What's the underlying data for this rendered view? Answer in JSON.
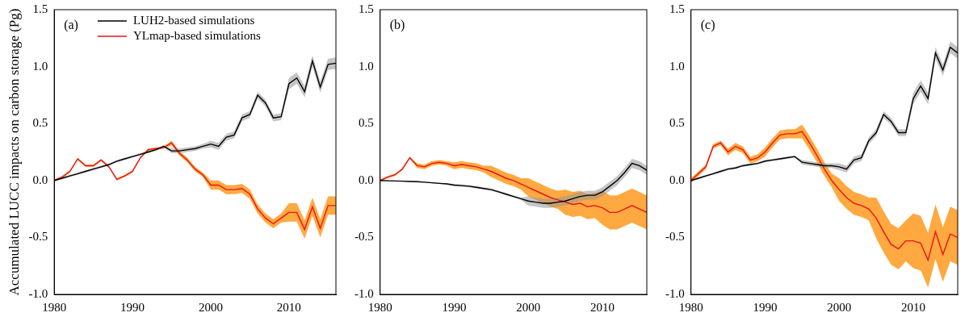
{
  "chart_data": [
    {
      "type": "line",
      "annotation": "(a)",
      "ylabel": "Accumulated LUCC impacts on carbon storage (Pg)",
      "legend": "upper left",
      "grid": false,
      "x": [
        1980,
        1981,
        1982,
        1983,
        1984,
        1985,
        1986,
        1987,
        1988,
        1989,
        1990,
        1991,
        1992,
        1993,
        1994,
        1995,
        1996,
        1997,
        1998,
        1999,
        2000,
        2001,
        2002,
        2003,
        2004,
        2005,
        2006,
        2007,
        2008,
        2009,
        2010,
        2011,
        2012,
        2013,
        2014,
        2015,
        2016
      ],
      "xlim": [
        1980,
        2016
      ],
      "xticks": [
        1980,
        1990,
        2000,
        2010
      ],
      "ylim": [
        -1,
        1.5
      ],
      "yticks": [
        {
          "value": -1,
          "label": "-1.0"
        },
        {
          "value": -0.5,
          "label": "-0.5"
        },
        {
          "value": 0,
          "label": "0.0"
        },
        {
          "value": 0.5,
          "label": "0.5"
        },
        {
          "value": 1,
          "label": "1.0"
        },
        {
          "value": 1.5,
          "label": "1.5"
        }
      ],
      "series": [
        {
          "name": "LUH2-based simulations",
          "color": "#000000",
          "values": [
            0,
            0.02,
            0.04,
            0.06,
            0.08,
            0.1,
            0.12,
            0.14,
            0.17,
            0.19,
            0.21,
            0.23,
            0.25,
            0.27,
            0.3,
            0.26,
            0.26,
            0.27,
            0.28,
            0.3,
            0.32,
            0.3,
            0.38,
            0.4,
            0.55,
            0.58,
            0.75,
            0.68,
            0.55,
            0.56,
            0.85,
            0.9,
            0.78,
            1.05,
            0.82,
            1.02,
            1.03
          ],
          "error": [
            0.01,
            0.01,
            0.01,
            0.01,
            0.01,
            0.01,
            0.01,
            0.01,
            0.01,
            0.01,
            0.01,
            0.01,
            0.01,
            0.01,
            0.01,
            0.02,
            0.02,
            0.02,
            0.02,
            0.02,
            0.03,
            0.03,
            0.03,
            0.03,
            0.03,
            0.03,
            0.03,
            0.03,
            0.03,
            0.03,
            0.05,
            0.05,
            0.05,
            0.05,
            0.05,
            0.05,
            0.05
          ]
        },
        {
          "name": "YLmap-based simulations",
          "color": "#e8141c",
          "values": [
            0,
            0.03,
            0.08,
            0.19,
            0.13,
            0.13,
            0.18,
            0.12,
            0.01,
            0.04,
            0.08,
            0.2,
            0.27,
            0.28,
            0.29,
            0.33,
            0.24,
            0.18,
            0.1,
            0.05,
            -0.04,
            -0.04,
            -0.08,
            -0.08,
            -0.07,
            -0.12,
            -0.25,
            -0.33,
            -0.38,
            -0.33,
            -0.28,
            -0.28,
            -0.43,
            -0.23,
            -0.42,
            -0.22,
            -0.22
          ],
          "error": [
            0.01,
            0.01,
            0.01,
            0.01,
            0.01,
            0.01,
            0.01,
            0.01,
            0.01,
            0.01,
            0.01,
            0.01,
            0.01,
            0.01,
            0.01,
            0.02,
            0.02,
            0.02,
            0.02,
            0.02,
            0.04,
            0.04,
            0.04,
            0.04,
            0.04,
            0.04,
            0.04,
            0.04,
            0.04,
            0.04,
            0.08,
            0.08,
            0.08,
            0.08,
            0.08,
            0.08,
            0.08
          ]
        }
      ]
    },
    {
      "type": "line",
      "annotation": "(b)",
      "grid": false,
      "x": [
        1980,
        1981,
        1982,
        1983,
        1984,
        1985,
        1986,
        1987,
        1988,
        1989,
        1990,
        1991,
        1992,
        1993,
        1994,
        1995,
        1996,
        1997,
        1998,
        1999,
        2000,
        2001,
        2002,
        2003,
        2004,
        2005,
        2006,
        2007,
        2008,
        2009,
        2010,
        2011,
        2012,
        2013,
        2014,
        2015,
        2016
      ],
      "xlim": [
        1980,
        2016
      ],
      "xticks": [
        1980,
        1990,
        2000,
        2010
      ],
      "ylim": [
        -1,
        1.5
      ],
      "yticks": [
        {
          "value": -1,
          "label": "-1.0"
        },
        {
          "value": -0.5,
          "label": "-0.5"
        },
        {
          "value": 0,
          "label": "0.0"
        },
        {
          "value": 0.5,
          "label": "0.5"
        },
        {
          "value": 1,
          "label": "1.0"
        },
        {
          "value": 1.5,
          "label": "1.5"
        }
      ],
      "series": [
        {
          "name": "LUH2-based simulations",
          "color": "#000000",
          "values": [
            0,
            -0.002,
            -0.004,
            -0.006,
            -0.008,
            -0.01,
            -0.015,
            -0.02,
            -0.025,
            -0.03,
            -0.04,
            -0.045,
            -0.05,
            -0.06,
            -0.07,
            -0.08,
            -0.1,
            -0.12,
            -0.14,
            -0.16,
            -0.18,
            -0.19,
            -0.2,
            -0.2,
            -0.19,
            -0.18,
            -0.16,
            -0.14,
            -0.13,
            -0.13,
            -0.1,
            -0.05,
            0.0,
            0.07,
            0.15,
            0.13,
            0.09
          ],
          "error": [
            0.005,
            0.005,
            0.005,
            0.005,
            0.005,
            0.005,
            0.005,
            0.005,
            0.005,
            0.005,
            0.01,
            0.01,
            0.01,
            0.01,
            0.01,
            0.01,
            0.01,
            0.01,
            0.01,
            0.01,
            0.04,
            0.04,
            0.04,
            0.04,
            0.04,
            0.04,
            0.04,
            0.04,
            0.04,
            0.04,
            0.04,
            0.04,
            0.04,
            0.04,
            0.04,
            0.04,
            0.04
          ]
        },
        {
          "name": "YLmap-based simulations",
          "color": "#e8141c",
          "values": [
            0,
            0.03,
            0.05,
            0.1,
            0.2,
            0.13,
            0.12,
            0.15,
            0.16,
            0.15,
            0.13,
            0.14,
            0.13,
            0.12,
            0.1,
            0.08,
            0.05,
            0.02,
            0.0,
            -0.03,
            -0.06,
            -0.09,
            -0.12,
            -0.15,
            -0.17,
            -0.19,
            -0.21,
            -0.2,
            -0.23,
            -0.22,
            -0.24,
            -0.28,
            -0.28,
            -0.25,
            -0.22,
            -0.25,
            -0.28
          ],
          "error": [
            0.01,
            0.01,
            0.01,
            0.01,
            0.01,
            0.02,
            0.02,
            0.02,
            0.02,
            0.02,
            0.03,
            0.03,
            0.03,
            0.03,
            0.03,
            0.05,
            0.05,
            0.05,
            0.05,
            0.05,
            0.08,
            0.08,
            0.08,
            0.08,
            0.08,
            0.11,
            0.11,
            0.11,
            0.11,
            0.11,
            0.15,
            0.15,
            0.15,
            0.15,
            0.15,
            0.15,
            0.15
          ]
        }
      ]
    },
    {
      "type": "line",
      "annotation": "(c)",
      "grid": false,
      "x": [
        1980,
        1981,
        1982,
        1983,
        1984,
        1985,
        1986,
        1987,
        1988,
        1989,
        1990,
        1991,
        1992,
        1993,
        1994,
        1995,
        1996,
        1997,
        1998,
        1999,
        2000,
        2001,
        2002,
        2003,
        2004,
        2005,
        2006,
        2007,
        2008,
        2009,
        2010,
        2011,
        2012,
        2013,
        2014,
        2015,
        2016
      ],
      "xlim": [
        1980,
        2016
      ],
      "xticks": [
        1980,
        1990,
        2000,
        2010
      ],
      "ylim": [
        -1,
        1.5
      ],
      "yticks": [
        {
          "value": -1,
          "label": "-1.0"
        },
        {
          "value": -0.5,
          "label": "-0.5"
        },
        {
          "value": 0,
          "label": "0.0"
        },
        {
          "value": 0.5,
          "label": "0.5"
        },
        {
          "value": 1,
          "label": "1.0"
        },
        {
          "value": 1.5,
          "label": "1.5"
        }
      ],
      "series": [
        {
          "name": "LUH2-based simulations",
          "color": "#000000",
          "values": [
            0,
            0.02,
            0.04,
            0.06,
            0.08,
            0.1,
            0.11,
            0.13,
            0.14,
            0.15,
            0.17,
            0.18,
            0.19,
            0.2,
            0.21,
            0.16,
            0.15,
            0.14,
            0.13,
            0.13,
            0.12,
            0.1,
            0.18,
            0.2,
            0.35,
            0.42,
            0.58,
            0.52,
            0.42,
            0.42,
            0.72,
            0.83,
            0.72,
            1.12,
            0.97,
            1.17,
            1.12
          ],
          "error": [
            0.01,
            0.01,
            0.01,
            0.01,
            0.01,
            0.01,
            0.01,
            0.01,
            0.01,
            0.01,
            0.01,
            0.01,
            0.01,
            0.01,
            0.01,
            0.02,
            0.02,
            0.02,
            0.02,
            0.02,
            0.03,
            0.03,
            0.03,
            0.03,
            0.03,
            0.03,
            0.03,
            0.03,
            0.03,
            0.03,
            0.05,
            0.05,
            0.05,
            0.05,
            0.05,
            0.05,
            0.05
          ]
        },
        {
          "name": "YLmap-based simulations",
          "color": "#e8141c",
          "values": [
            0,
            0.06,
            0.12,
            0.3,
            0.33,
            0.25,
            0.3,
            0.27,
            0.18,
            0.2,
            0.25,
            0.33,
            0.4,
            0.41,
            0.41,
            0.43,
            0.33,
            0.22,
            0.1,
            0.0,
            -0.08,
            -0.15,
            -0.2,
            -0.22,
            -0.25,
            -0.33,
            -0.45,
            -0.56,
            -0.6,
            -0.53,
            -0.53,
            -0.55,
            -0.7,
            -0.45,
            -0.65,
            -0.47,
            -0.5
          ],
          "error": [
            0.02,
            0.02,
            0.02,
            0.02,
            0.02,
            0.03,
            0.03,
            0.03,
            0.03,
            0.03,
            0.04,
            0.04,
            0.04,
            0.04,
            0.04,
            0.06,
            0.06,
            0.06,
            0.06,
            0.06,
            0.1,
            0.1,
            0.1,
            0.1,
            0.1,
            0.18,
            0.18,
            0.18,
            0.18,
            0.18,
            0.24,
            0.24,
            0.24,
            0.24,
            0.24,
            0.24,
            0.24
          ]
        }
      ]
    }
  ]
}
